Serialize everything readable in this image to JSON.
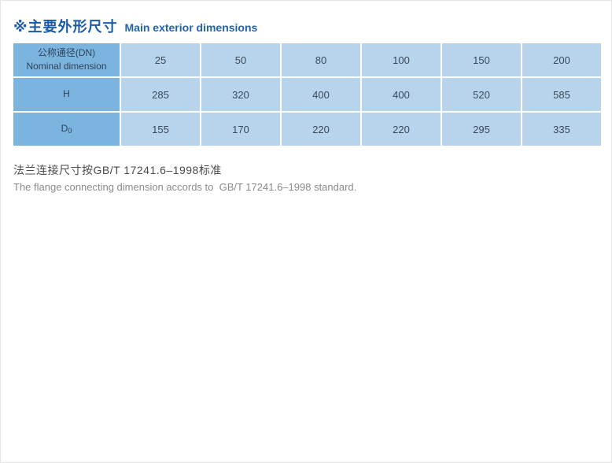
{
  "page": {
    "title_zh": "※主要外形尺寸",
    "title_en": "Main exterior dimensions"
  },
  "table": {
    "header": {
      "label_zh": "公称通径(DN)",
      "label_en": "Nominal dimension",
      "columns": [
        "25",
        "50",
        "80",
        "100",
        "150",
        "200"
      ]
    },
    "rows": [
      {
        "label": "H",
        "label_sub": "",
        "values": [
          "285",
          "320",
          "400",
          "400",
          "520",
          "585"
        ]
      },
      {
        "label": "D",
        "label_sub": "0",
        "values": [
          "155",
          "170",
          "220",
          "220",
          "295",
          "335"
        ]
      }
    ]
  },
  "footnote": {
    "line_zh": "法兰连接尺寸按GB/T 17241.6–1998标准",
    "line_en": "The flange connecting dimension accords to  GB/T 17241.6–1998 standard."
  },
  "colors": {
    "title_blue": "#1a5ba8",
    "header_cell_blue": "#7cb4e0",
    "data_cell_blue": "#b8d4ec",
    "cell_text": "#394a5a",
    "footnote_zh_gray": "#4a4a4a",
    "footnote_en_gray": "#8a8a8a"
  }
}
